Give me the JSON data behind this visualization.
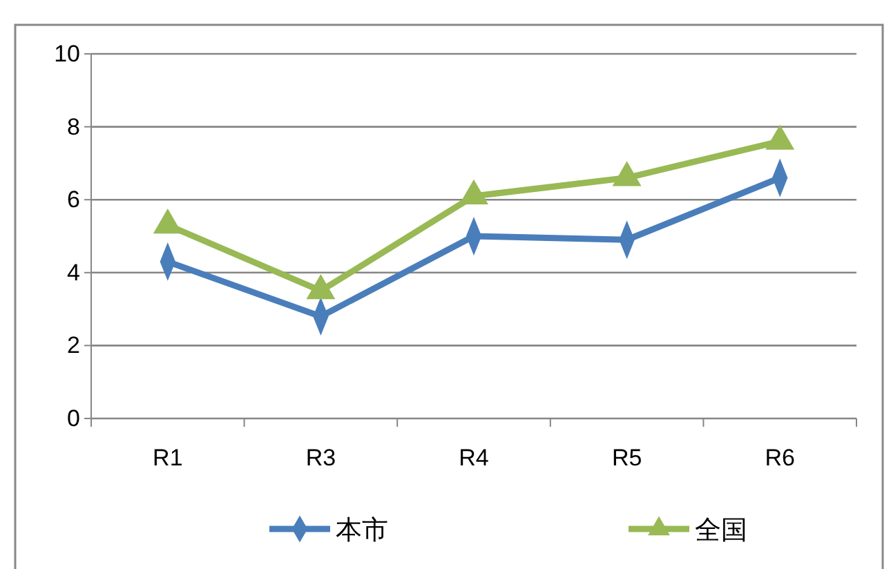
{
  "chart_data": {
    "type": "line",
    "categories": [
      "R1",
      "R3",
      "R4",
      "R5",
      "R6"
    ],
    "series": [
      {
        "name": "本市",
        "color": "#4a7ebb",
        "values": [
          4.3,
          2.8,
          5.0,
          4.9,
          6.6
        ],
        "marker": "diamond"
      },
      {
        "name": "全国",
        "color": "#98b954",
        "values": [
          5.3,
          3.5,
          6.1,
          6.6,
          7.6
        ],
        "marker": "triangle"
      }
    ],
    "ylim": [
      0,
      10
    ],
    "yticks": [
      0,
      2,
      4,
      6,
      8,
      10
    ],
    "grid": "y",
    "legend": "bottom"
  }
}
